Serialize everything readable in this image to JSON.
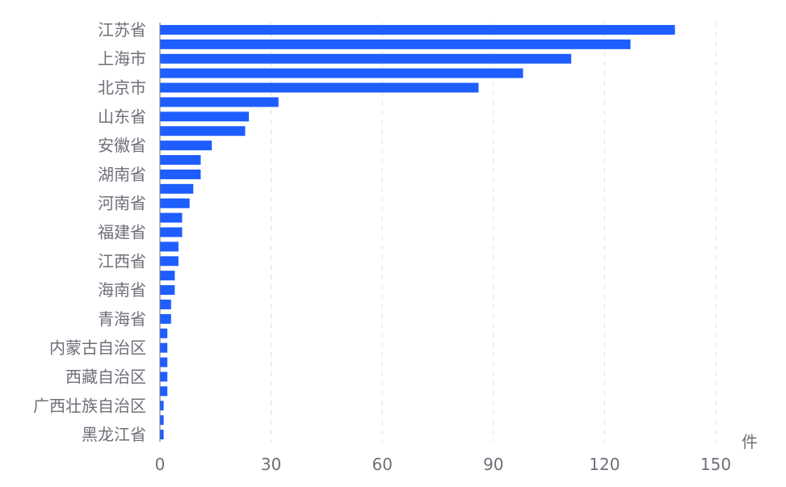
{
  "chart_data": {
    "type": "bar",
    "orientation": "horizontal",
    "unit": "件",
    "xlim": [
      0,
      150
    ],
    "xticks": [
      "0",
      "30",
      "60",
      "90",
      "120",
      "150"
    ],
    "grid": "vertical dashed",
    "bar_color": "#1e5eff",
    "categories": [
      "江苏省",
      "",
      "上海市",
      "",
      "北京市",
      "",
      "山东省",
      "",
      "安徽省",
      "",
      "湖南省",
      "",
      "河南省",
      "",
      "福建省",
      "",
      "江西省",
      "",
      "海南省",
      "",
      "青海省",
      "",
      "内蒙古自治区",
      "",
      "西藏自治区",
      "",
      "广西壮族自治区",
      "",
      "黑龙江省"
    ],
    "values": [
      139,
      127,
      111,
      98,
      86,
      32,
      24,
      23,
      14,
      11,
      11,
      9,
      8,
      6,
      6,
      5,
      5,
      4,
      4,
      3,
      3,
      2,
      2,
      2,
      2,
      2,
      1,
      1,
      1
    ]
  }
}
